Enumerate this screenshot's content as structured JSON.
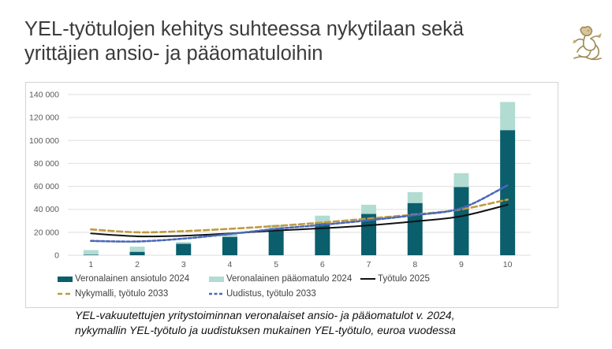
{
  "title": {
    "line1": "YEL-työtulojen kehitys suhteessa nykytilaan sekä",
    "line2": "yrittäjien ansio- ja pääomatuloihin"
  },
  "logo": {
    "icon": "lion-crest-icon"
  },
  "caption": {
    "line1": "YEL-vakuutettujen yritystoiminnan veronalaiset ansio- ja pääomatulot v. 2024,",
    "line2": "nykymallin YEL-työtulo ja uudistuksen mukainen YEL-työtulo, euroa vuodessa"
  },
  "colors": {
    "bar_earned": "#0b5e6c",
    "bar_capital": "#b2dcd1",
    "line_worktulo": "#111111",
    "line_current": "#c09a3e",
    "line_reform": "#4a69b8",
    "grid": "#dedede",
    "tick_text": "#595959"
  },
  "chart_data": {
    "type": "bar",
    "stacked": true,
    "categories": [
      "1",
      "2",
      "3",
      "4",
      "5",
      "6",
      "7",
      "8",
      "9",
      "10"
    ],
    "ylim": [
      0,
      140000
    ],
    "yticks": [
      0,
      20000,
      40000,
      60000,
      80000,
      100000,
      120000,
      140000
    ],
    "ytick_labels": [
      "0",
      "20 000",
      "40 000",
      "60 000",
      "80 000",
      "100 000",
      "120 000",
      "140 000"
    ],
    "grid": true,
    "xlabel": "",
    "ylabel": "",
    "series": [
      {
        "name": "Veronalainen ansiotulo 2024",
        "kind": "bar",
        "values": [
          500,
          3000,
          10000,
          16000,
          21500,
          28000,
          36000,
          45500,
          59500,
          109000
        ]
      },
      {
        "name": "Veronalainen pääomatulo 2024",
        "kind": "bar",
        "values": [
          4000,
          4500,
          1500,
          2000,
          5000,
          6500,
          8000,
          9500,
          12000,
          24500
        ]
      },
      {
        "name": "Työtulo 2025",
        "kind": "line",
        "style": "solid",
        "values": [
          19000,
          16500,
          17000,
          19000,
          21500,
          23500,
          26000,
          29500,
          34000,
          44000
        ]
      },
      {
        "name": "Nykymalli, työtulo 2033",
        "kind": "line",
        "style": "dashed",
        "values": [
          22500,
          20000,
          21000,
          23000,
          25500,
          28500,
          32000,
          35500,
          40000,
          48500
        ]
      },
      {
        "name": "Uudistus, työtulo 2033",
        "kind": "line",
        "style": "dotted",
        "values": [
          12500,
          12000,
          14500,
          18500,
          23000,
          26500,
          30500,
          35000,
          41000,
          61000
        ]
      }
    ],
    "legend": [
      {
        "label": "Veronalainen ansiotulo 2024",
        "symbol": "box-earned"
      },
      {
        "label": "Veronalainen pääomatulo 2024",
        "symbol": "box-capital"
      },
      {
        "label": "Työtulo 2025",
        "symbol": "line-solid"
      },
      {
        "label": "Nykymalli, työtulo 2033",
        "symbol": "line-dashed"
      },
      {
        "label": "Uudistus, työtulo 2033",
        "symbol": "line-dotted"
      }
    ],
    "legend_position": "bottom-left"
  }
}
